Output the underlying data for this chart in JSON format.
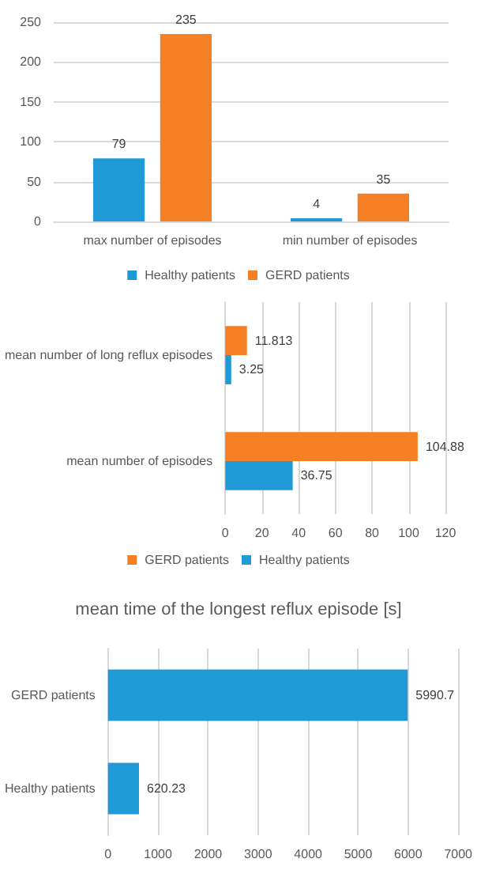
{
  "chart_data": [
    {
      "type": "bar",
      "categories": [
        "max number of episodes",
        "min number of episodes"
      ],
      "series": [
        {
          "name": "Healthy patients",
          "color": "#1f9ad6",
          "values": [
            79,
            4
          ]
        },
        {
          "name": "GERD patients",
          "color": "#f57f25",
          "values": [
            235,
            35
          ]
        }
      ],
      "ylim": [
        0,
        250
      ],
      "yticks": [
        0,
        50,
        100,
        150,
        200,
        250
      ],
      "grid": "y",
      "legend": "bottom",
      "data_labels": true
    },
    {
      "type": "bar",
      "orientation": "horizontal",
      "categories": [
        "mean number of long reflux episodes",
        "mean number of episodes"
      ],
      "series": [
        {
          "name": "GERD patients",
          "color": "#f57f25",
          "values": [
            11.813,
            104.88
          ]
        },
        {
          "name": "Healthy patients",
          "color": "#1f9ad6",
          "values": [
            3.25,
            36.75
          ]
        }
      ],
      "xlim": [
        0,
        120
      ],
      "xticks": [
        0,
        20,
        40,
        60,
        80,
        100,
        120
      ],
      "grid": "x",
      "legend": "bottom",
      "data_labels": true
    },
    {
      "type": "bar",
      "orientation": "horizontal",
      "title": "mean time of the longest reflux episode [s]",
      "categories": [
        "GERD patients",
        "Healthy patients"
      ],
      "series": [
        {
          "color": "#1f9ad6",
          "values": [
            5990.7,
            620.23
          ]
        }
      ],
      "xlim": [
        0,
        7000
      ],
      "xticks": [
        0,
        1000,
        2000,
        3000,
        4000,
        5000,
        6000,
        7000
      ],
      "grid": "x",
      "data_labels": true
    }
  ]
}
